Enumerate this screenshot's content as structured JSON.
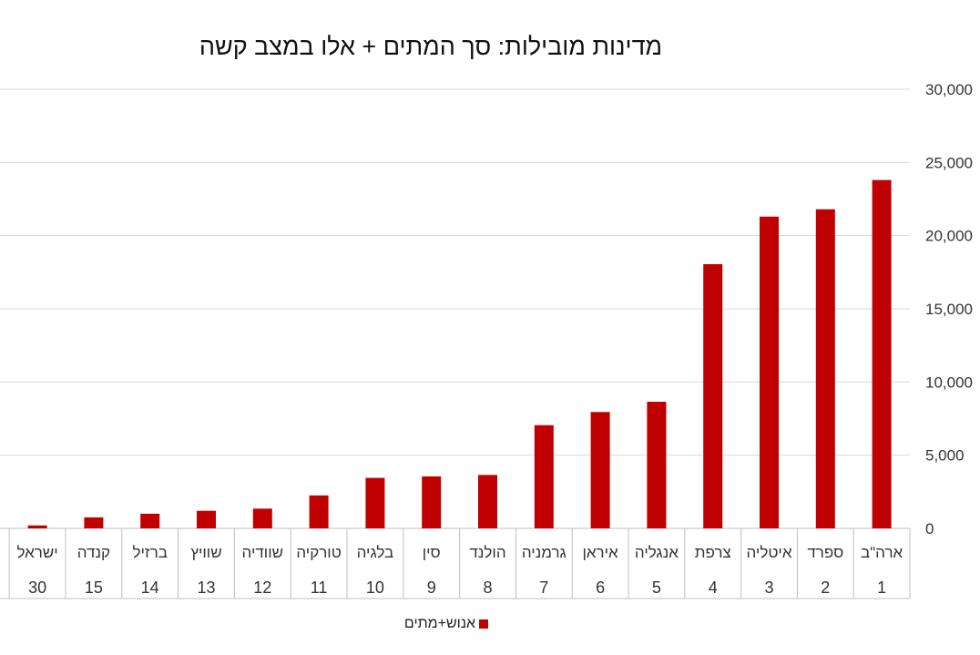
{
  "chart_data": {
    "type": "bar",
    "title": "מדינות מובילות: סך המתים + אלו במצב קשה",
    "categories": [
      "ארה\"ב",
      "ספרד",
      "איטליה",
      "צרפת",
      "אנגליה",
      "איראן",
      "גרמניה",
      "הולנד",
      "סין",
      "בלגיה",
      "טורקיה",
      "שוודיה",
      "שוויץ",
      "ברזיל",
      "קנדה",
      "ישראל"
    ],
    "ranks": [
      "1",
      "2",
      "3",
      "4",
      "5",
      "6",
      "7",
      "8",
      "9",
      "10",
      "11",
      "12",
      "13",
      "14",
      "15",
      "30"
    ],
    "series": [
      {
        "name": "אנוש+מתים",
        "color": "#C00000",
        "values": [
          23800,
          21800,
          21300,
          18050,
          8650,
          7950,
          7050,
          3650,
          3550,
          3450,
          2250,
          1350,
          1200,
          1000,
          750,
          200
        ]
      }
    ],
    "yticks": [
      "0",
      "5,000",
      "10,000",
      "15,000",
      "20,000",
      "25,000",
      "30,000"
    ],
    "ylim": [
      0,
      30000
    ],
    "grid": true,
    "legend_position": "bottom",
    "order": "right-to-left"
  }
}
